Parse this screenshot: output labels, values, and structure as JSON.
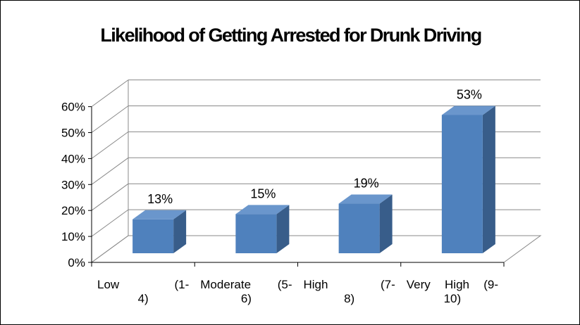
{
  "chart_data": {
    "type": "bar",
    "title": "Likelihood of Getting Arrested for Drunk Driving",
    "categories": [
      "Low (1-4)",
      "Moderate (5-6)",
      "High (7-8)",
      "Very High (9-10)"
    ],
    "category_lines": [
      [
        "Low (1-",
        "4)"
      ],
      [
        "Moderate (5-",
        "6)"
      ],
      [
        "High (7-",
        "8)"
      ],
      [
        "Very High (9-",
        "10)"
      ]
    ],
    "values": [
      13,
      15,
      19,
      53
    ],
    "data_labels": [
      "13%",
      "15%",
      "19%",
      "53%"
    ],
    "y_ticks": [
      "0%",
      "10%",
      "20%",
      "30%",
      "40%",
      "50%",
      "60%"
    ],
    "ylim": [
      0,
      60
    ],
    "y_unit": "%",
    "style": "3d-column",
    "grid": true,
    "legend": "none",
    "colors": {
      "bar_front": "#4f81bd",
      "bar_side": "#385d8a",
      "bar_top": "#6a96cc",
      "grid": "#888888"
    }
  }
}
